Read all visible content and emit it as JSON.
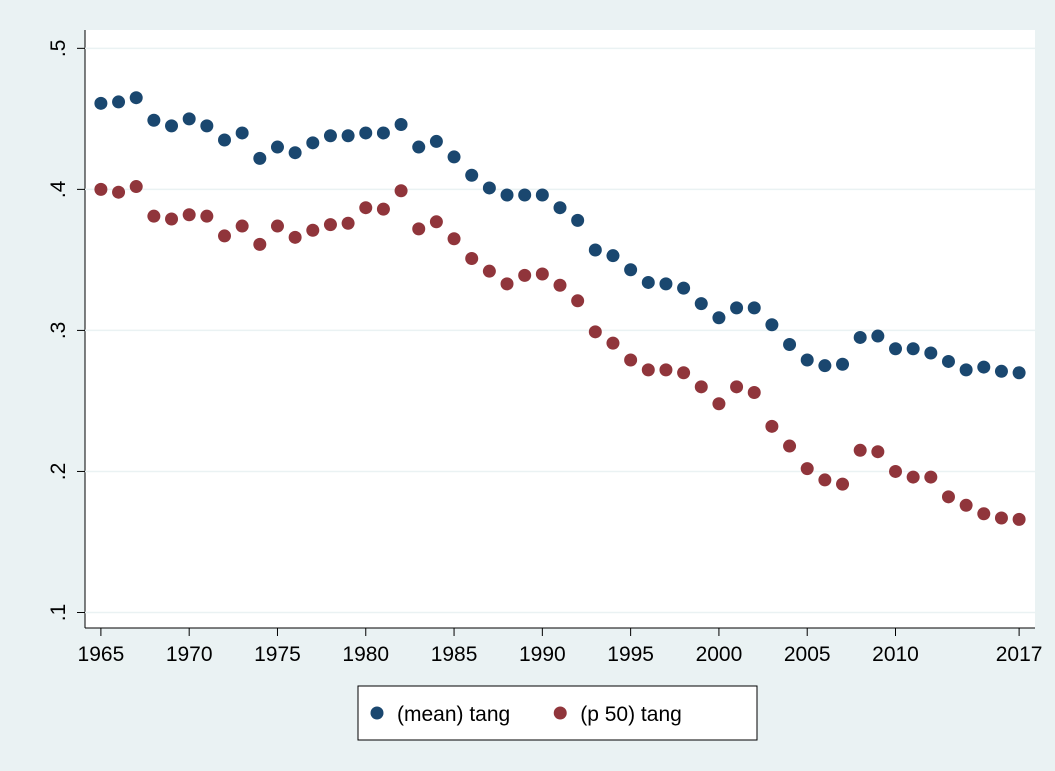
{
  "chart_data": {
    "type": "scatter",
    "x": [
      1965,
      1966,
      1967,
      1968,
      1969,
      1970,
      1971,
      1972,
      1973,
      1974,
      1975,
      1976,
      1977,
      1978,
      1979,
      1980,
      1981,
      1982,
      1983,
      1984,
      1985,
      1986,
      1987,
      1988,
      1989,
      1990,
      1991,
      1992,
      1993,
      1994,
      1995,
      1996,
      1997,
      1998,
      1999,
      2000,
      2001,
      2002,
      2003,
      2004,
      2005,
      2006,
      2007,
      2008,
      2009,
      2010,
      2011,
      2012,
      2013,
      2014,
      2015,
      2016,
      2017
    ],
    "series": [
      {
        "name": "(mean) tang",
        "color": "#1a476f",
        "values": [
          0.461,
          0.462,
          0.465,
          0.449,
          0.445,
          0.45,
          0.445,
          0.435,
          0.44,
          0.422,
          0.43,
          0.426,
          0.433,
          0.438,
          0.438,
          0.44,
          0.44,
          0.446,
          0.43,
          0.434,
          0.423,
          0.41,
          0.401,
          0.396,
          0.396,
          0.396,
          0.387,
          0.378,
          0.357,
          0.353,
          0.343,
          0.334,
          0.333,
          0.33,
          0.319,
          0.309,
          0.316,
          0.316,
          0.304,
          0.29,
          0.279,
          0.275,
          0.276,
          0.295,
          0.296,
          0.287,
          0.287,
          0.284,
          0.278,
          0.272,
          0.274,
          0.271,
          0.27
        ]
      },
      {
        "name": "(p 50) tang",
        "color": "#90353b",
        "values": [
          0.4,
          0.398,
          0.402,
          0.381,
          0.379,
          0.382,
          0.381,
          0.367,
          0.374,
          0.361,
          0.374,
          0.366,
          0.371,
          0.375,
          0.376,
          0.387,
          0.386,
          0.399,
          0.372,
          0.377,
          0.365,
          0.351,
          0.342,
          0.333,
          0.339,
          0.34,
          0.332,
          0.321,
          0.299,
          0.291,
          0.279,
          0.272,
          0.272,
          0.27,
          0.26,
          0.248,
          0.26,
          0.256,
          0.232,
          0.218,
          0.202,
          0.194,
          0.191,
          0.215,
          0.214,
          0.2,
          0.196,
          0.196,
          0.182,
          0.176,
          0.17,
          0.167,
          0.166
        ]
      }
    ],
    "xlim": [
      1964.1,
      2017.9
    ],
    "xticks": [
      1965,
      1970,
      1975,
      1980,
      1985,
      1990,
      1995,
      2000,
      2005,
      2010,
      2017
    ],
    "ylim": [
      0.089,
      0.513
    ],
    "yticks": [
      {
        "value": 0.1,
        "label": ".1"
      },
      {
        "value": 0.2,
        "label": ".2"
      },
      {
        "value": 0.3,
        "label": ".3"
      },
      {
        "value": 0.4,
        "label": ".4"
      },
      {
        "value": 0.5,
        "label": ".5"
      }
    ],
    "grid": true,
    "legend": "bottom"
  }
}
